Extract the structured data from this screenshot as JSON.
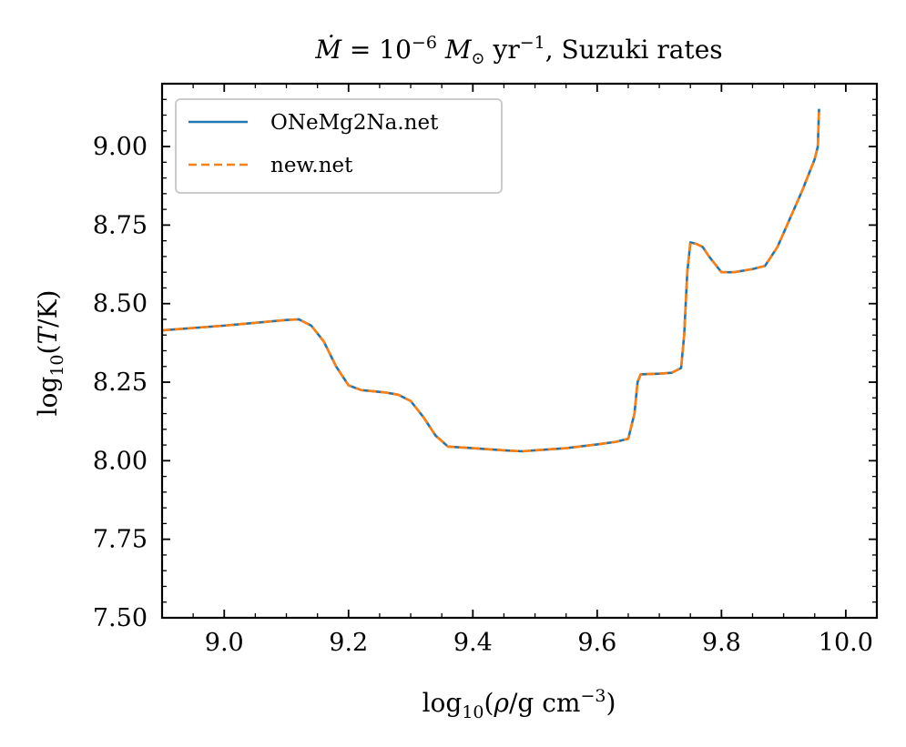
{
  "chart_data": {
    "type": "line",
    "title": "Ṁ = 10⁻⁶ M⊙ yr⁻¹, Suzuki rates",
    "xlabel": "log₁₀(ρ/g cm⁻³)",
    "ylabel": "log₁₀(T/K)",
    "xlim": [
      8.9,
      10.05
    ],
    "ylim": [
      7.5,
      9.2
    ],
    "xticks": [
      9.0,
      9.2,
      9.4,
      9.6,
      9.8,
      10.0
    ],
    "xtick_labels": [
      "9.0",
      "9.2",
      "9.4",
      "9.6",
      "9.8",
      "10.0"
    ],
    "yticks": [
      7.5,
      7.75,
      8.0,
      8.25,
      8.5,
      8.75,
      9.0
    ],
    "ytick_labels": [
      "7.50",
      "7.75",
      "8.00",
      "8.25",
      "8.50",
      "8.75",
      "9.00"
    ],
    "grid": false,
    "legend_position": "top-left",
    "colors": {
      "ONeMg2Na.net": "#1f77b4",
      "new.net": "#ff7f0e"
    },
    "series": [
      {
        "name": "ONeMg2Na.net",
        "style": "solid",
        "x": [
          8.9,
          9.0,
          9.1,
          9.12,
          9.14,
          9.16,
          9.18,
          9.2,
          9.22,
          9.26,
          9.28,
          9.3,
          9.32,
          9.34,
          9.36,
          9.4,
          9.45,
          9.48,
          9.5,
          9.55,
          9.6,
          9.63,
          9.65,
          9.66,
          9.665,
          9.67,
          9.7,
          9.72,
          9.735,
          9.74,
          9.745,
          9.75,
          9.76,
          9.77,
          9.78,
          9.8,
          9.82,
          9.85,
          9.87,
          9.89,
          9.91,
          9.93,
          9.94,
          9.95,
          9.955,
          9.956,
          9.957
        ],
        "y": [
          8.415,
          8.43,
          8.448,
          8.45,
          8.43,
          8.38,
          8.3,
          8.24,
          8.225,
          8.217,
          8.21,
          8.19,
          8.14,
          8.08,
          8.045,
          8.04,
          8.033,
          8.03,
          8.033,
          8.04,
          8.052,
          8.06,
          8.07,
          8.15,
          8.25,
          8.275,
          8.277,
          8.28,
          8.295,
          8.4,
          8.6,
          8.695,
          8.69,
          8.68,
          8.65,
          8.6,
          8.6,
          8.61,
          8.62,
          8.68,
          8.77,
          8.86,
          8.91,
          8.96,
          9.0,
          9.06,
          9.12
        ]
      },
      {
        "name": "new.net",
        "style": "dashed",
        "x": [
          8.9,
          9.0,
          9.1,
          9.12,
          9.14,
          9.16,
          9.18,
          9.2,
          9.22,
          9.26,
          9.28,
          9.3,
          9.32,
          9.34,
          9.36,
          9.4,
          9.45,
          9.48,
          9.5,
          9.55,
          9.6,
          9.63,
          9.65,
          9.66,
          9.665,
          9.67,
          9.7,
          9.72,
          9.735,
          9.74,
          9.745,
          9.75,
          9.76,
          9.77,
          9.78,
          9.8,
          9.82,
          9.85,
          9.87,
          9.89,
          9.91,
          9.93,
          9.94,
          9.95,
          9.955,
          9.956,
          9.957
        ],
        "y": [
          8.415,
          8.43,
          8.448,
          8.45,
          8.43,
          8.38,
          8.3,
          8.24,
          8.225,
          8.217,
          8.21,
          8.19,
          8.14,
          8.08,
          8.045,
          8.04,
          8.033,
          8.03,
          8.033,
          8.04,
          8.052,
          8.06,
          8.07,
          8.15,
          8.25,
          8.275,
          8.277,
          8.28,
          8.295,
          8.4,
          8.6,
          8.695,
          8.69,
          8.68,
          8.65,
          8.6,
          8.6,
          8.61,
          8.62,
          8.68,
          8.77,
          8.86,
          8.91,
          8.96,
          9.0,
          9.06,
          9.12
        ]
      }
    ]
  }
}
